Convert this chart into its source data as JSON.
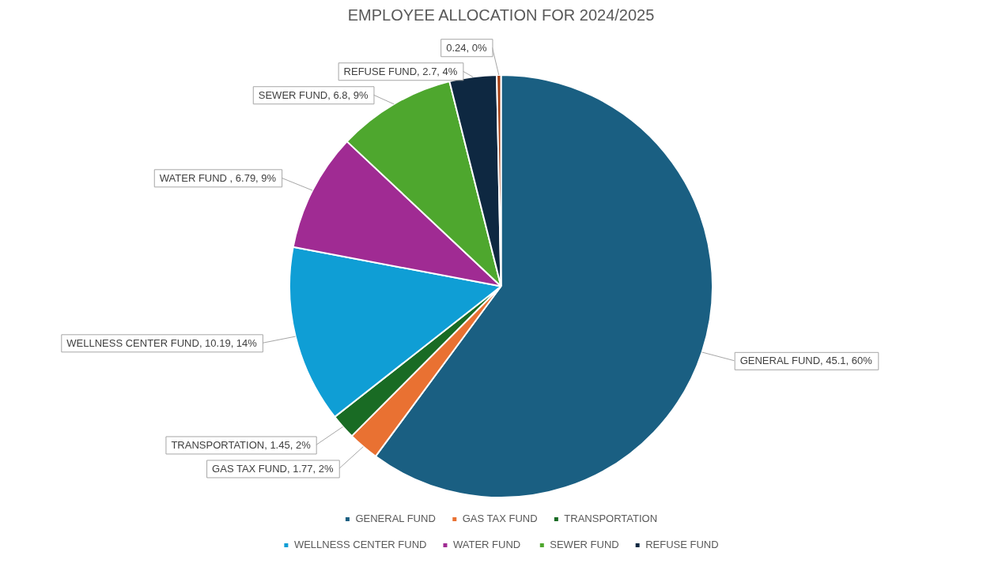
{
  "chart_data": {
    "type": "pie",
    "title": "EMPLOYEE ALLOCATION FOR 2024/2025",
    "categories": [
      "GENERAL FUND",
      "GAS TAX FUND",
      "TRANSPORTATION",
      "WELLNESS CENTER FUND",
      "WATER FUND ",
      "SEWER FUND",
      "REFUSE FUND",
      null
    ],
    "values": [
      45.1,
      1.77,
      1.45,
      10.19,
      6.79,
      6.8,
      2.7,
      0.24
    ],
    "colors": [
      "#1a5f82",
      "#e97132",
      "#196b24",
      "#0f9ed5",
      "#a02b93",
      "#4ea72e",
      "#0e2841",
      "#a33c10"
    ],
    "value_labels": [
      "GENERAL FUND, 45.1, 60%",
      "GAS TAX FUND, 1.77, 2%",
      "TRANSPORTATION, 1.45, 2%",
      "WELLNESS CENTER FUND, 10.19, 14%",
      "WATER FUND , 6.79, 9%",
      "SEWER FUND, 6.8, 9%",
      "REFUSE FUND, 2.7, 4%",
      "0.24, 0%"
    ],
    "legend": "bottom"
  }
}
